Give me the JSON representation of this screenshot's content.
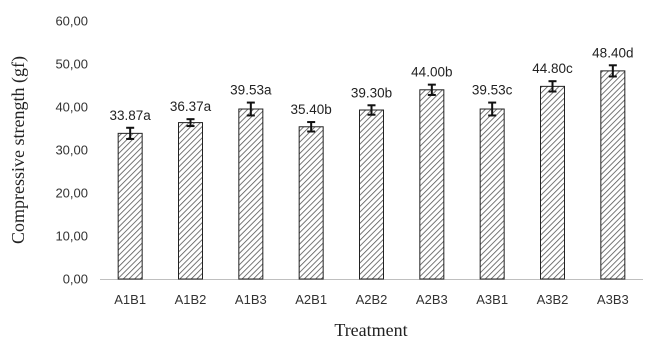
{
  "chart_data": {
    "type": "bar",
    "title": "",
    "xlabel": "Treatment",
    "ylabel": "Compressive strength (gf)",
    "categories": [
      "A1B1",
      "A1B2",
      "A1B3",
      "A2B1",
      "A2B2",
      "A2B3",
      "A3B1",
      "A3B2",
      "A3B3"
    ],
    "values": [
      33.87,
      36.37,
      39.53,
      35.4,
      39.3,
      44.0,
      39.53,
      44.8,
      48.4
    ],
    "errors": [
      1.3,
      0.8,
      1.5,
      1.1,
      1.1,
      1.2,
      1.5,
      1.2,
      1.3
    ],
    "data_labels": [
      "33.87a",
      "36.37a",
      "39.53a",
      "35.40b",
      "39.30b",
      "44.00b",
      "39.53c",
      "44.80c",
      "48.40d"
    ],
    "y_ticks": [
      "0,00",
      "10,00",
      "20,00",
      "30,00",
      "40,00",
      "50,00",
      "60,00"
    ],
    "ylim": [
      0,
      60
    ],
    "grid": false,
    "legend": "none",
    "bar_pattern": "diagonal-hatch",
    "colors": {
      "bar_fill": "#ffffff",
      "hatch": "#555555",
      "bar_stroke": "#222222",
      "axis": "#bfbfbf",
      "error_bar": "#111111"
    }
  }
}
